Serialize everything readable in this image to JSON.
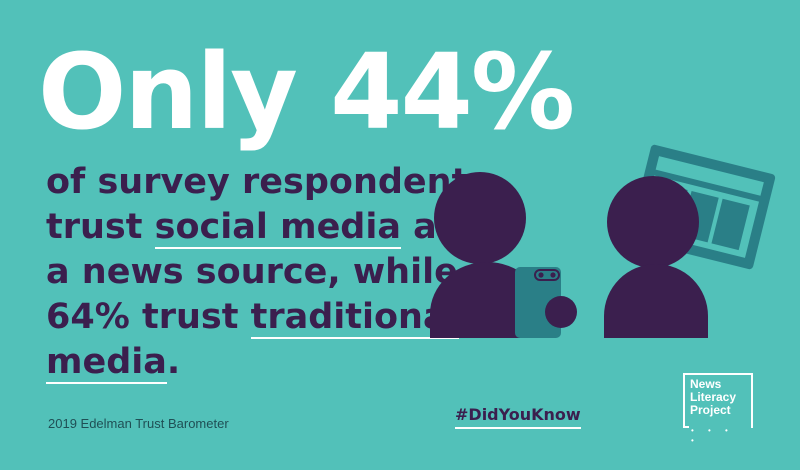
{
  "headline": "Only 44%",
  "body": {
    "line1": "of survey respondents",
    "line2_pre": "trust ",
    "line2_u": "social media",
    "line2_post": " as",
    "line3": "a news source, while",
    "line4_pre": "64% trust ",
    "line4_u": "traditional",
    "line5_u": "media",
    "line5_post": "."
  },
  "source": "2019 Edelman Trust Barometer",
  "hashtag": "#DidYouKnow",
  "logo": {
    "line1": "News",
    "line2": "Literacy",
    "line3": "Project",
    "dots": "• • • •"
  },
  "colors": {
    "background": "#52c1b9",
    "headline": "#ffffff",
    "body": "#3b1f4e",
    "figure": "#3b1f4e",
    "device": "#2a7f87"
  }
}
